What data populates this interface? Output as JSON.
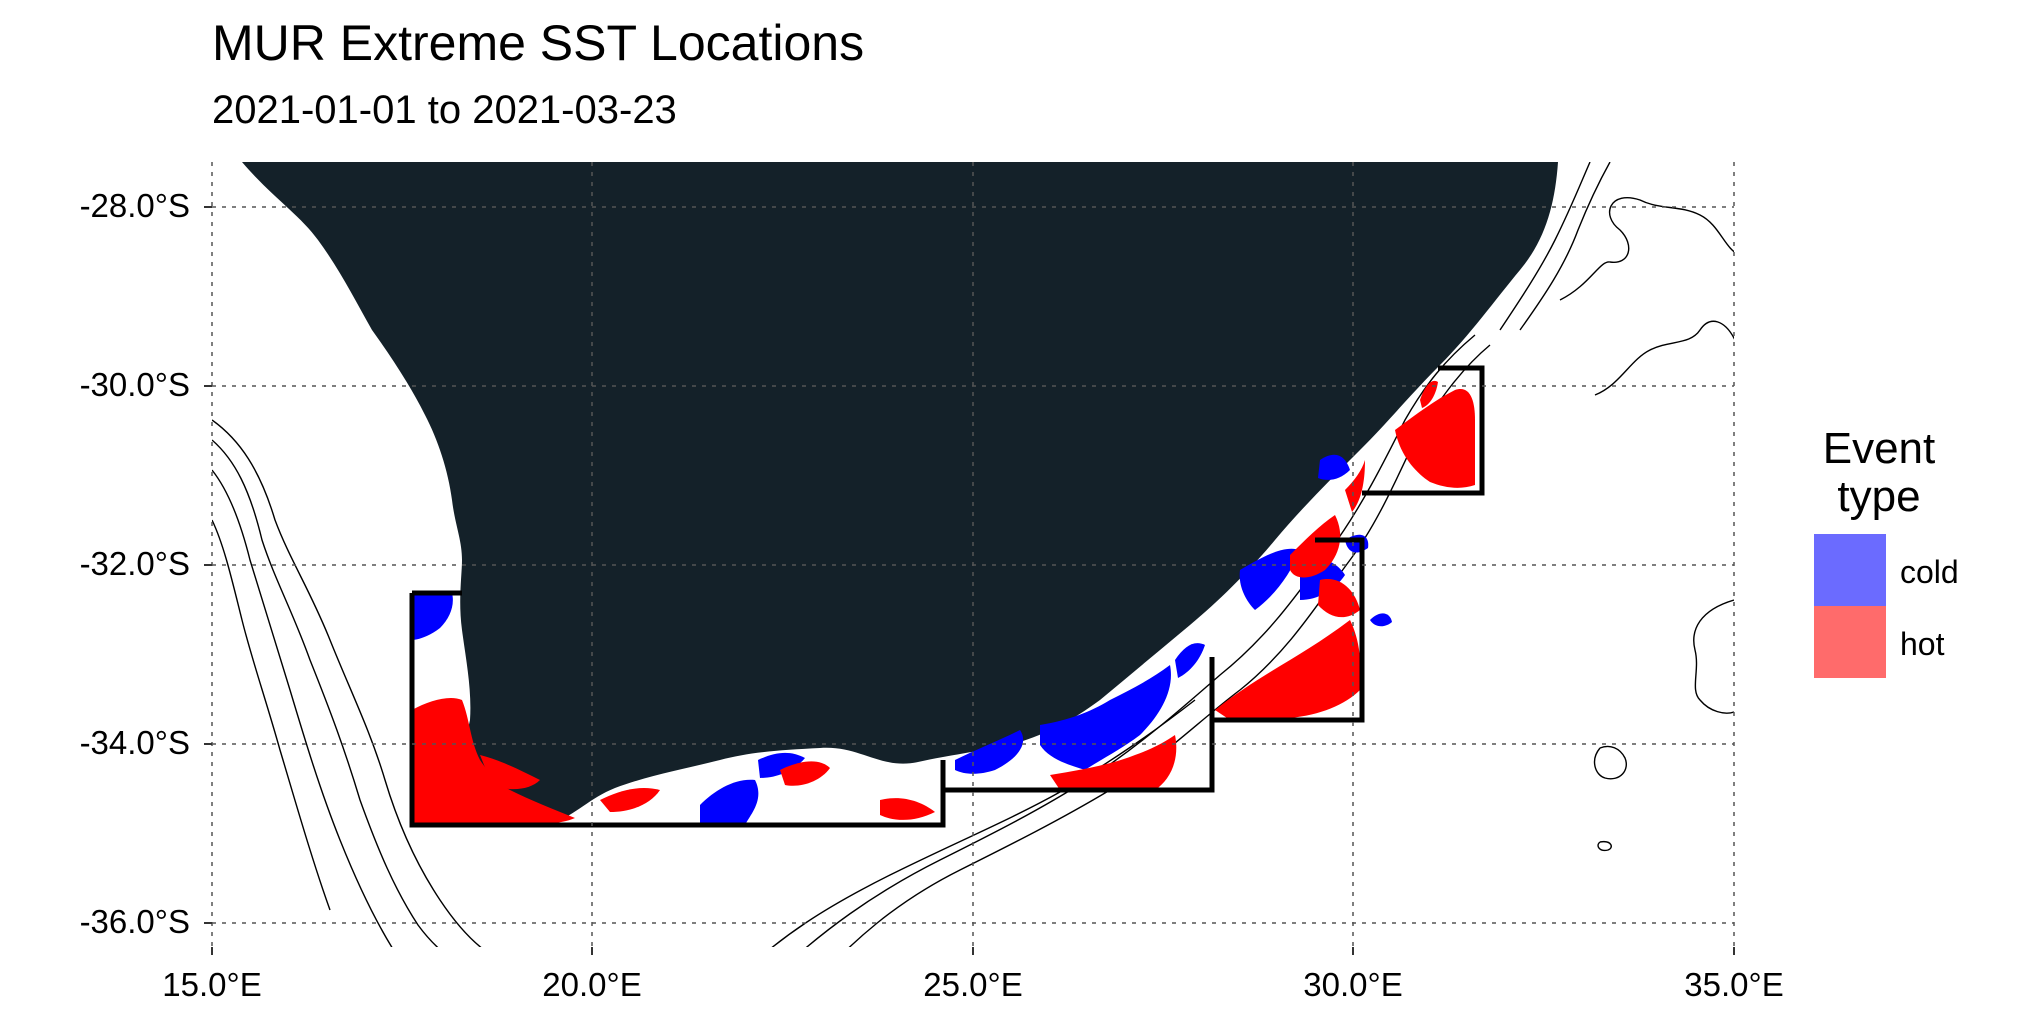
{
  "title": "MUR Extreme SST Locations",
  "subtitle": "2021-01-01 to 2021-03-23",
  "y_axis": {
    "ticks": [
      "-28.0°S",
      "-30.0°S",
      "-32.0°S",
      "-34.0°S",
      "-36.0°S"
    ],
    "tick_values": [
      -28,
      -30,
      -32,
      -34,
      -36
    ],
    "range": [
      -36.5,
      -27.5
    ]
  },
  "x_axis": {
    "ticks": [
      "15.0°E",
      "20.0°E",
      "25.0°E",
      "30.0°E",
      "35.0°E"
    ],
    "tick_values": [
      15,
      20,
      25,
      30,
      35
    ],
    "range": [
      15,
      35
    ]
  },
  "legend": {
    "title_line1": "Event",
    "title_line2": "type",
    "items": [
      {
        "label": "cold",
        "color": "#6b6bff"
      },
      {
        "label": "hot",
        "color": "#ff6b6b"
      }
    ]
  },
  "colors": {
    "land": "#142129",
    "cold": "#0000ff",
    "hot": "#ff0000",
    "grid": "#666666"
  },
  "regions": [
    {
      "name": "west-coast-box",
      "lon": [
        17.5,
        24.6
      ],
      "lat": [
        -34.95,
        -32.3
      ]
    },
    {
      "name": "agulhas-bank-box",
      "lon": [
        24.6,
        28.1
      ],
      "lat": [
        -34.55,
        -33.7
      ]
    },
    {
      "name": "east-coast-box",
      "lon": [
        28.1,
        30.1
      ],
      "lat": [
        -33.7,
        -31.7
      ]
    },
    {
      "name": "wild-coast-box",
      "lon": [
        30.1,
        31.7
      ],
      "lat": [
        -31.2,
        -29.8
      ]
    }
  ]
}
